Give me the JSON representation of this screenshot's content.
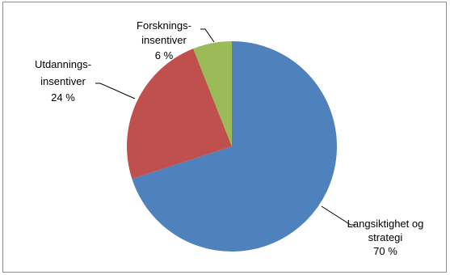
{
  "chart_data": {
    "type": "pie",
    "title": "",
    "slices": [
      {
        "label_lines": [
          "Langsiktighet og",
          "strategi"
        ],
        "value_label": "70 %",
        "value": 70,
        "color": "#4f81bd"
      },
      {
        "label_lines": [
          "Utdannings-",
          "insentiver"
        ],
        "value_label": "24 %",
        "value": 24,
        "color": "#c0504d"
      },
      {
        "label_lines": [
          "Forsknings-",
          "insentiver"
        ],
        "value_label": "6 %",
        "value": 6,
        "color": "#9bbb59"
      }
    ],
    "start_angle_deg": 0,
    "direction": "clockwise",
    "legend": "none",
    "border_color": "#8c8c8c"
  }
}
